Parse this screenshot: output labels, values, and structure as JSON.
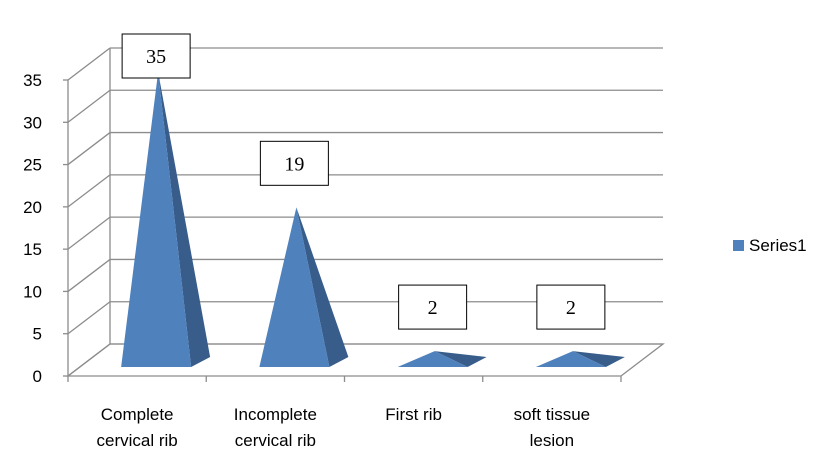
{
  "chart_data": {
    "type": "bar",
    "style": "3d-pyramid",
    "categories": [
      [
        "Complete",
        "cervical rib"
      ],
      [
        "Incomplete",
        "cervical rib"
      ],
      [
        "First rib"
      ],
      [
        "soft tissue",
        "lesion"
      ]
    ],
    "series": [
      {
        "name": "Series1",
        "values": [
          35,
          19,
          2,
          2
        ],
        "color": "#4F81BD"
      }
    ],
    "data_labels": [
      "35",
      "19",
      "2",
      "2"
    ],
    "ylim": [
      0,
      35
    ],
    "yticks": [
      "0",
      "5",
      "10",
      "15",
      "20",
      "25",
      "30",
      "35"
    ],
    "grid": true,
    "legend": "right"
  }
}
